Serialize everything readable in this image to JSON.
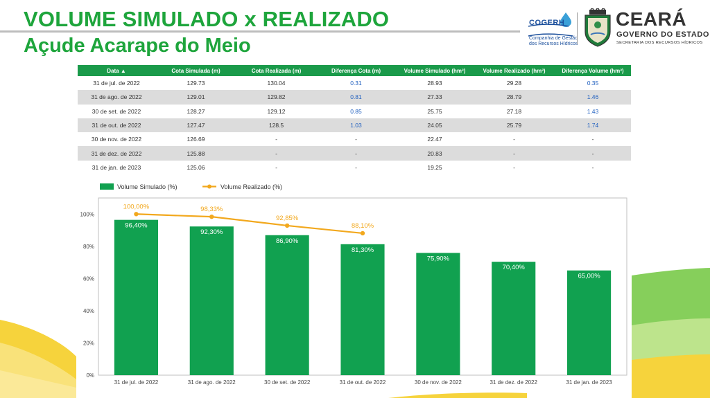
{
  "header": {
    "title_line1": "VOLUME SIMULADO x REALIZADO",
    "title_line2": "Açude Acarape do Meio"
  },
  "logos": {
    "cogerh": {
      "name": "COGERH",
      "sub1": "Companhia de Gestão",
      "sub2": "dos Recursos Hídricos"
    },
    "ceara": {
      "name": "CEARÁ",
      "gov": "GOVERNO DO ESTADO",
      "sec": "SECRETARIA DOS RECURSOS HÍDRICOS"
    }
  },
  "colors": {
    "title_green": "#1ea53c",
    "table_header": "#1a9a4a",
    "bar": "#11a150",
    "line": "#f2a81d",
    "diff_blue": "#1f5fbf"
  },
  "table": {
    "headers": [
      "Data ▲",
      "Cota Simulada (m)",
      "Cota Realizada (m)",
      "Diferença Cota (m)",
      "Volume Simulado (hm³)",
      "Volume Realizado (hm³)",
      "Diferença Volume (hm³)"
    ],
    "rows": [
      [
        "31 de jul. de 2022",
        "129.73",
        "130.04",
        "0.31",
        "28.93",
        "29.28",
        "0.35"
      ],
      [
        "31 de ago. de 2022",
        "129.01",
        "129.82",
        "0.81",
        "27.33",
        "28.79",
        "1.46"
      ],
      [
        "30 de set. de 2022",
        "128.27",
        "129.12",
        "0.85",
        "25.75",
        "27.18",
        "1.43"
      ],
      [
        "31 de out. de 2022",
        "127.47",
        "128.5",
        "1.03",
        "24.05",
        "25.79",
        "1.74"
      ],
      [
        "30 de nov. de 2022",
        "126.69",
        "-",
        "-",
        "22.47",
        "-",
        "-"
      ],
      [
        "31 de dez. de 2022",
        "125.88",
        "-",
        "-",
        "20.83",
        "-",
        "-"
      ],
      [
        "31 de jan. de 2023",
        "125.06",
        "-",
        "-",
        "19.25",
        "-",
        "-"
      ]
    ]
  },
  "chart_data": {
    "type": "bar",
    "categories": [
      "31 de jul. de 2022",
      "31 de ago. de 2022",
      "30 de set. de 2022",
      "31 de out. de 2022",
      "30 de nov. de 2022",
      "31 de dez. de 2022",
      "31 de jan. de 2023"
    ],
    "series": [
      {
        "name": "Volume Simulado (%)",
        "type": "bar",
        "values": [
          96.4,
          92.3,
          86.9,
          81.3,
          75.9,
          70.4,
          65.0
        ],
        "labels": [
          "96,40%",
          "92,30%",
          "86,90%",
          "81,30%",
          "75,90%",
          "70,40%",
          "65,00%"
        ]
      },
      {
        "name": "Volume Realizado (%)",
        "type": "line",
        "values": [
          100.0,
          98.33,
          92.85,
          88.1,
          null,
          null,
          null
        ],
        "labels": [
          "100,00%",
          "98,33%",
          "92,85%",
          "88,10%",
          null,
          null,
          null
        ]
      }
    ],
    "yticks": [
      0,
      20,
      40,
      60,
      80,
      100
    ],
    "ytick_labels": [
      "0%",
      "20%",
      "40%",
      "60%",
      "80%",
      "100%"
    ],
    "ylim": [
      0,
      110
    ],
    "legend_position": "top-left",
    "grid": false
  }
}
